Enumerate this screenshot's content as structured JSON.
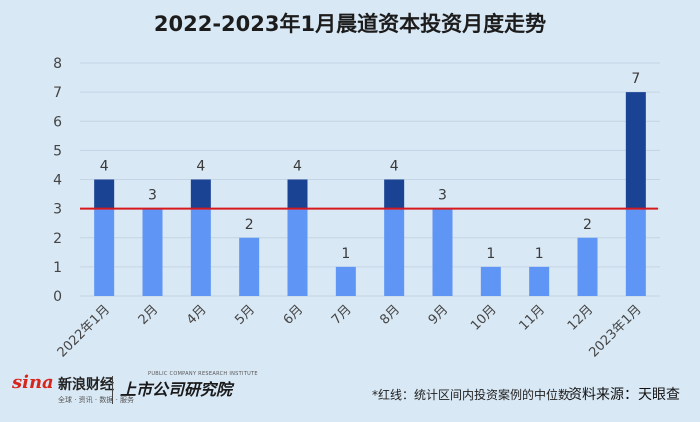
{
  "title": "2022-2023年1月晨道资本投资月度走势",
  "chart_data": {
    "type": "bar",
    "categories": [
      "2022年1月",
      "2月",
      "4月",
      "5月",
      "6月",
      "7月",
      "8月",
      "9月",
      "10月",
      "11月",
      "12月",
      "2023年1月"
    ],
    "values": [
      4,
      3,
      4,
      2,
      4,
      1,
      4,
      3,
      1,
      1,
      2,
      7
    ],
    "median_line": 3,
    "ylim": [
      0,
      8
    ],
    "yticks": [
      0,
      1,
      2,
      3,
      4,
      5,
      6,
      7,
      8
    ],
    "grid": true,
    "colors": {
      "bar_below": "#5f95f5",
      "bar_above": "#1a4394",
      "median_line": "#d7181c",
      "label": "#3a3a3a"
    }
  },
  "footer": {
    "sina_logo": "sina",
    "sina_name": "新浪财经",
    "sina_sub": "全球 · 资讯 · 数据 · 服务",
    "institute_name": "上市公司研究院",
    "institute_sub": "PUBLIC COMPANY RESEARCH INSTITUTE",
    "note": "*红线：统计区间内投资案例的中位数",
    "source": "资料来源：天眼查"
  }
}
